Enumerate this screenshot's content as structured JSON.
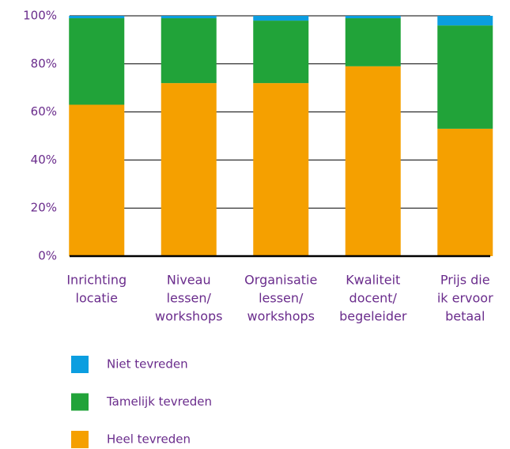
{
  "chart_data": {
    "type": "stacked_bar",
    "categories": [
      [
        "Inrichting",
        "locatie"
      ],
      [
        "Niveau",
        "lessen/",
        "workshops"
      ],
      [
        "Organisatie",
        "lessen/",
        "workshops"
      ],
      [
        "Kwaliteit",
        "docent/",
        "begeleider"
      ],
      [
        "Prijs die",
        "ik ervoor",
        "betaal"
      ]
    ],
    "series": [
      {
        "name": "Heel tevreden",
        "color": "#f5a000",
        "values": [
          63,
          72,
          72,
          79,
          53
        ]
      },
      {
        "name": "Tamelijk tevreden",
        "color": "#21a339",
        "values": [
          36,
          27,
          26,
          20,
          43
        ]
      },
      {
        "name": "Niet tevreden",
        "color": "#0b9ee0",
        "values": [
          1,
          1,
          2,
          1,
          4
        ]
      }
    ],
    "ylim": [
      0,
      100
    ],
    "yticks": [
      {
        "value": 0,
        "label": "0%"
      },
      {
        "value": 20,
        "label": "20%"
      },
      {
        "value": 40,
        "label": "40%"
      },
      {
        "value": 60,
        "label": "60%"
      },
      {
        "value": 80,
        "label": "80%"
      },
      {
        "value": 100,
        "label": "100%"
      }
    ],
    "grid": true
  }
}
